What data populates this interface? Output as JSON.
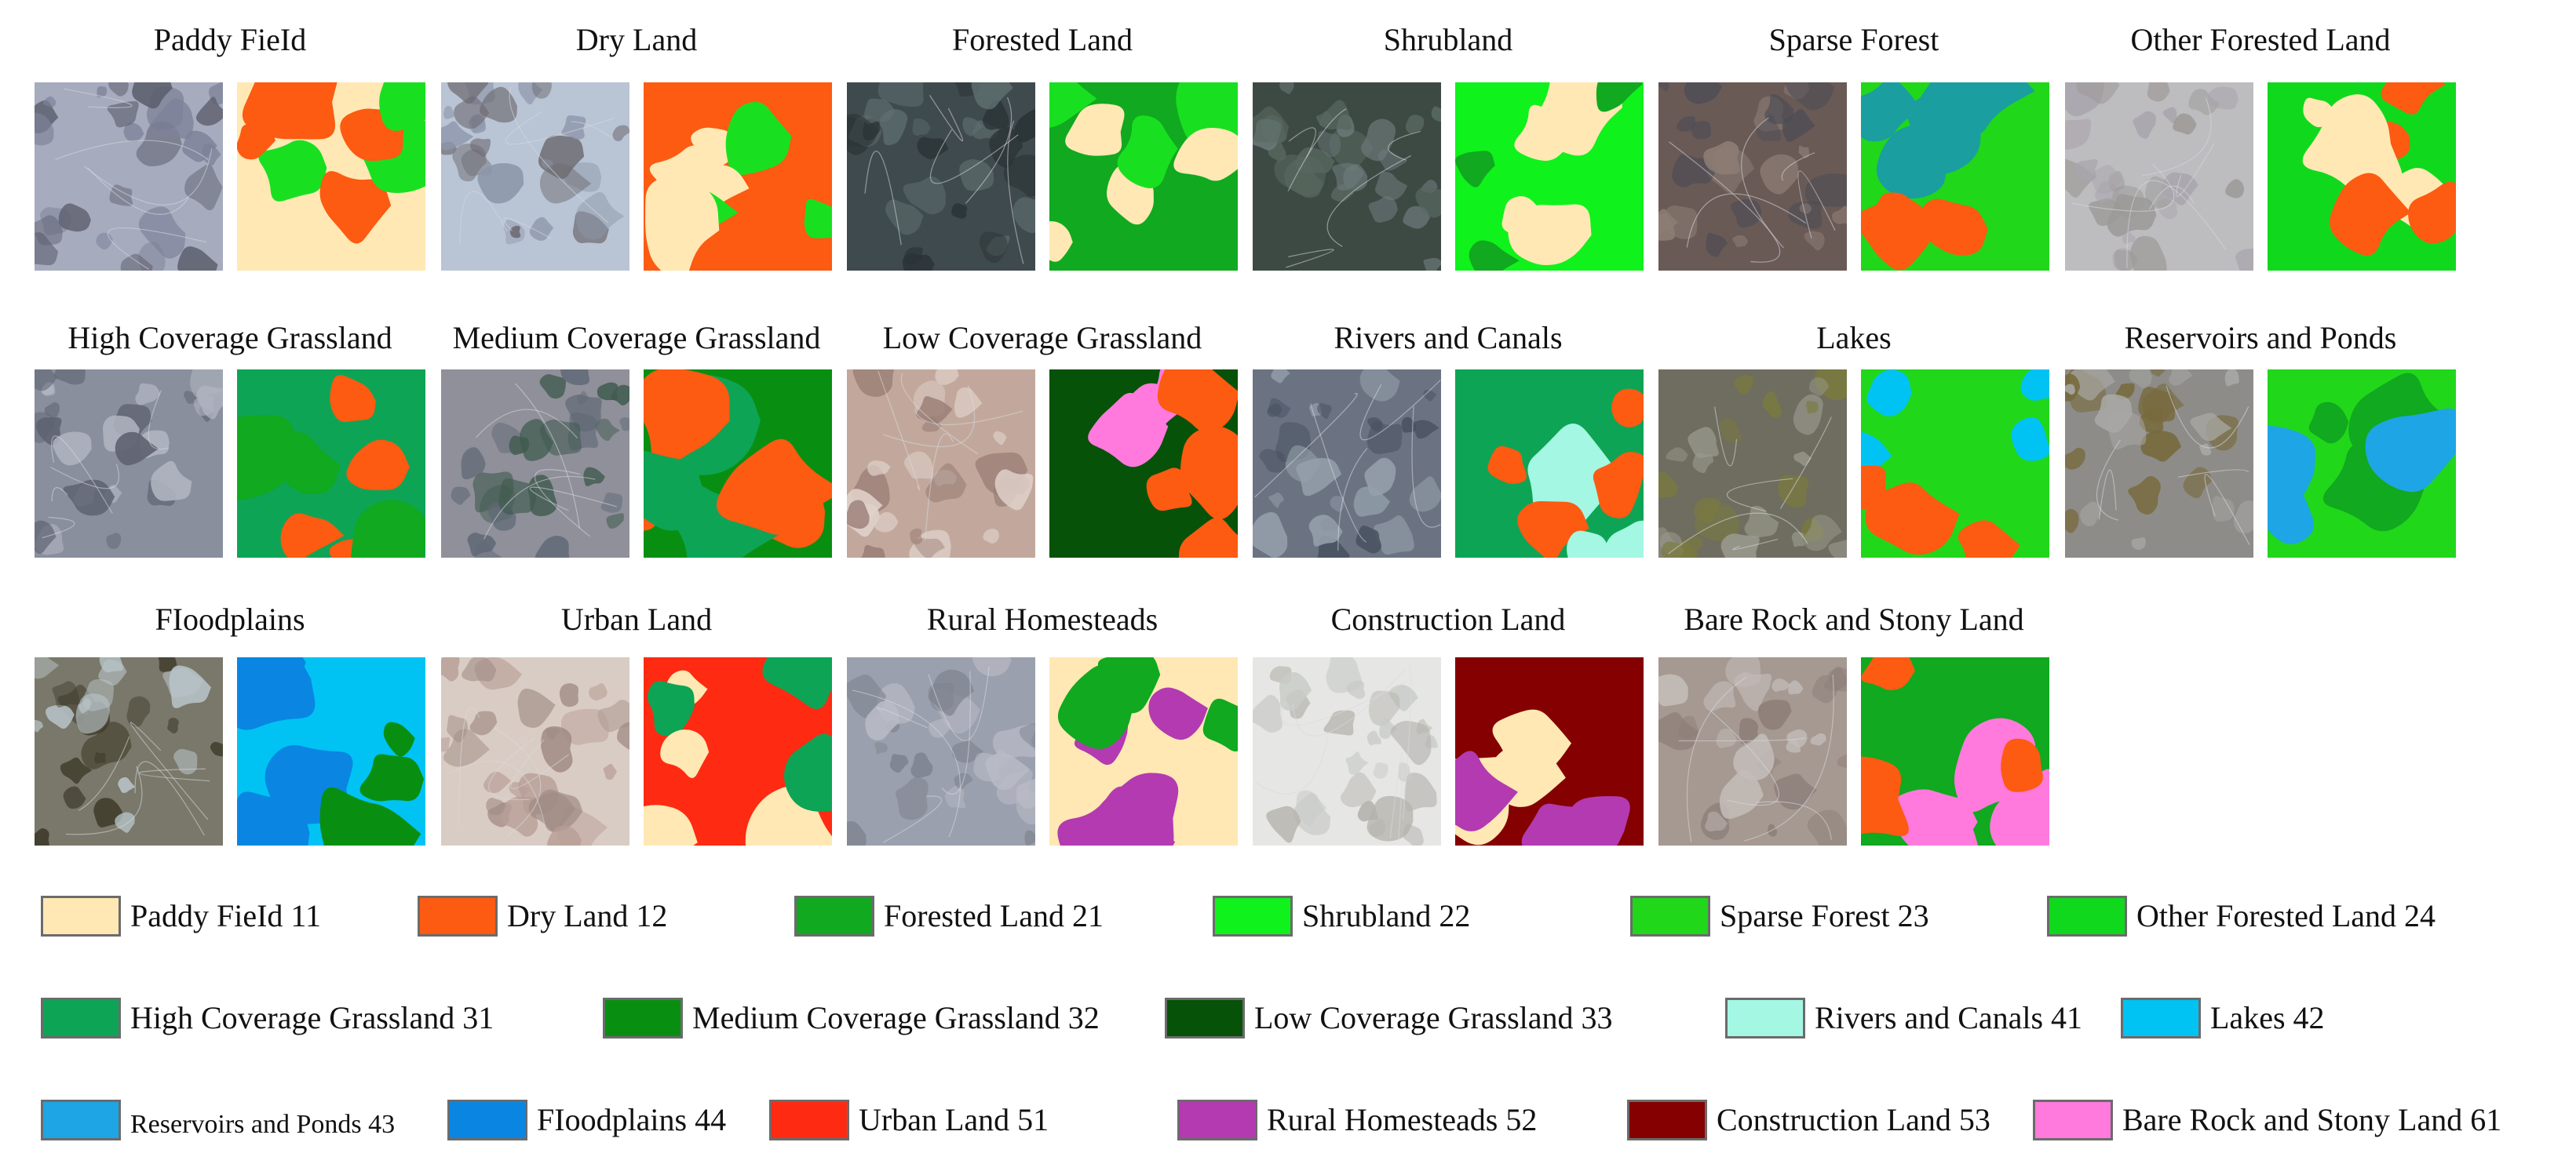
{
  "panels": [
    {
      "title": "Paddy FieId",
      "satellite_palette": [
        "#a6abbd",
        "#7d8299",
        "#5c5e6d"
      ],
      "label_palette": [
        "#ffe8b4",
        "#fd5a12",
        "#18e020"
      ]
    },
    {
      "title": "Dry Land",
      "satellite_palette": [
        "#b9c4d4",
        "#8d96aa",
        "#6e6b72"
      ],
      "label_palette": [
        "#fd5a12",
        "#ffe8b4",
        "#18e020"
      ]
    },
    {
      "title": "Forested Land",
      "satellite_palette": [
        "#3f4a4e",
        "#5f6f70",
        "#2a3336"
      ],
      "label_palette": [
        "#10a91f",
        "#ffe8b4",
        "#18e020"
      ]
    },
    {
      "title": "Shrubland",
      "satellite_palette": [
        "#3d4a44",
        "#58685f",
        "#6e7b7c"
      ],
      "label_palette": [
        "#0ff21b",
        "#ffe8b4",
        "#10a91f"
      ]
    },
    {
      "title": "Sparse Forest",
      "satellite_palette": [
        "#6a5a56",
        "#4c4c55",
        "#8d7d75"
      ],
      "label_palette": [
        "#21d71a",
        "#1a9ea0",
        "#fd5a12"
      ]
    },
    {
      "title": "Other Forested Land",
      "satellite_palette": [
        "#bdbcbf",
        "#a9a5ad",
        "#9c9a97"
      ],
      "label_palette": [
        "#10d91d",
        "#fd5a12",
        "#ffe8b4"
      ]
    },
    {
      "title": "High Coverage Grassland",
      "satellite_palette": [
        "#8a8f9e",
        "#5d6270",
        "#b2b5c1"
      ],
      "label_palette": [
        "#0ea455",
        "#fd5a12",
        "#10a91f"
      ]
    },
    {
      "title": "Medium Coverage Grassland",
      "satellite_palette": [
        "#8f909a",
        "#5f6875",
        "#3f5a4e"
      ],
      "label_palette": [
        "#088f12",
        "#fd5a12",
        "#0ea455"
      ]
    },
    {
      "title": "Low Coverage Grassland",
      "satellite_palette": [
        "#c2a89c",
        "#9a7e76",
        "#e0d2cb"
      ],
      "label_palette": [
        "#055208",
        "#fd5a12",
        "#ff7adc"
      ]
    },
    {
      "title": "Rivers and Canals",
      "satellite_palette": [
        "#6b7382",
        "#485161",
        "#95a0ac"
      ],
      "label_palette": [
        "#0ea455",
        "#fd5a12",
        "#a3f7e3"
      ]
    },
    {
      "title": "Lakes",
      "satellite_palette": [
        "#6e6d5f",
        "#7a7a3e",
        "#9a9a8e"
      ],
      "label_palette": [
        "#21d71a",
        "#00c3f4",
        "#fd5a12"
      ]
    },
    {
      "title": "Reservoirs and Ponds",
      "satellite_palette": [
        "#8d8c88",
        "#776a3c",
        "#aaa9a6"
      ],
      "label_palette": [
        "#21d71a",
        "#1ea5e5",
        "#10a91f"
      ]
    },
    {
      "title": "FIoodplains",
      "satellite_palette": [
        "#7a786a",
        "#3f3a2a",
        "#b8c4c8"
      ],
      "label_palette": [
        "#00c3f4",
        "#0a86e2",
        "#088f12"
      ]
    },
    {
      "title": "Urban Land",
      "satellite_palette": [
        "#d9ccc4",
        "#b79d95",
        "#a08b84"
      ],
      "label_palette": [
        "#ff2a12",
        "#ffe8b4",
        "#0ea455"
      ]
    },
    {
      "title": "Rural Homesteads",
      "satellite_palette": [
        "#9ba0ae",
        "#7e828f",
        "#b9bbc6"
      ],
      "label_palette": [
        "#ffe8b4",
        "#b33ab0",
        "#10a91f"
      ]
    },
    {
      "title": "Construction Land",
      "satellite_palette": [
        "#e6e6e4",
        "#c9cbc8",
        "#b5b3ad"
      ],
      "label_palette": [
        "#850000",
        "#ffe8b4",
        "#b33ab0"
      ]
    },
    {
      "title": "Bare Rock and Stony Land",
      "satellite_palette": [
        "#a59992",
        "#8d7e78",
        "#c4bdb9"
      ],
      "label_palette": [
        "#10a91f",
        "#ff7adc",
        "#fd5a12"
      ]
    }
  ],
  "legend": [
    {
      "label": "Paddy FieId 11",
      "color": "#ffe8b4"
    },
    {
      "label": "Dry Land 12",
      "color": "#fd5a12"
    },
    {
      "label": "Forested Land 21",
      "color": "#10a91f"
    },
    {
      "label": "Shrubland 22",
      "color": "#0ff21b"
    },
    {
      "label": "Sparse Forest 23",
      "color": "#21d71a"
    },
    {
      "label": "Other Forested Land 24",
      "color": "#10d91d"
    },
    {
      "label": "High Coverage Grassland 31",
      "color": "#0ea455"
    },
    {
      "label": "Medium Coverage Grassland 32",
      "color": "#088f12"
    },
    {
      "label": "Low Coverage Grassland 33",
      "color": "#055208"
    },
    {
      "label": "Rivers and Canals 41",
      "color": "#a3f7e3"
    },
    {
      "label": "Lakes 42",
      "color": "#00c3f4"
    },
    {
      "label": "Reservoirs and Ponds 43",
      "color": "#1ea5e5"
    },
    {
      "label": "FIoodplains 44",
      "color": "#0a86e2"
    },
    {
      "label": "Urban Land 51",
      "color": "#ff2a12"
    },
    {
      "label": "Rural Homesteads 52",
      "color": "#b33ab0"
    },
    {
      "label": "Construction Land 53",
      "color": "#850000"
    },
    {
      "label": "Bare Rock and Stony Land 61",
      "color": "#ff7adc"
    }
  ]
}
